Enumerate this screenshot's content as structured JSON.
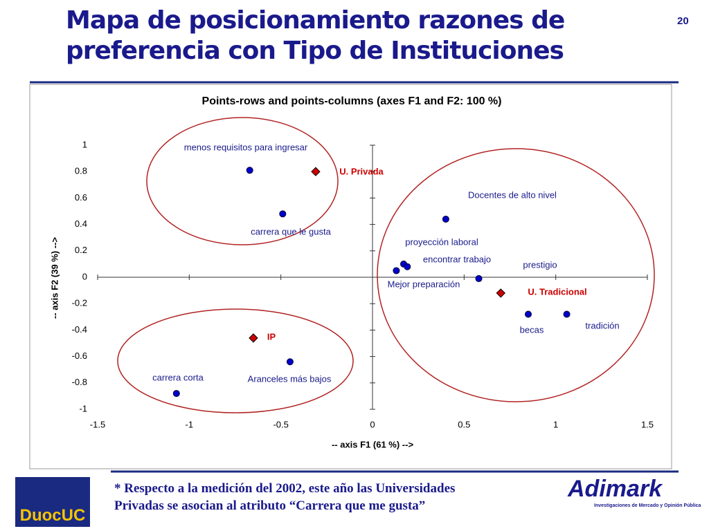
{
  "slide": {
    "title_lines": [
      "Mapa de posicionamiento razones de",
      "preferencia con Tipo de Instituciones"
    ],
    "page_number": "20",
    "footnote_lines": [
      "* Respecto a la medición del 2002, este año las Universidades",
      "Privadas se asocian al atributo “Carrera que me gusta”"
    ],
    "left_logo": "DuocUC",
    "right_logo": "Adimark",
    "right_logo_tagline": "Investigaciones de Mercado y Opinión Pública"
  },
  "chart_data": {
    "type": "scatter",
    "title": "Points-rows and points-columns (axes F1 and F2: 100 %)",
    "xlabel": "-- axis F1 (61 %) -->",
    "ylabel": "-- axis F2 (39 %) -->",
    "xlim": [
      -1.5,
      1.5
    ],
    "ylim": [
      -1,
      1
    ],
    "xticks": [
      -1.5,
      -1,
      -0.5,
      0,
      0.5,
      1,
      1.5
    ],
    "yticks": [
      -1,
      -0.8,
      -0.6,
      -0.4,
      -0.2,
      0,
      0.2,
      0.4,
      0.6,
      0.8,
      1
    ],
    "grid": false,
    "series": [
      {
        "color": "#0000cc",
        "marker": "circle",
        "labels": [
          "menos requisitos para ingresar",
          "carrera que le gusta",
          "Docentes de alto nivel",
          "proyección laboral",
          "encontrar trabajo",
          "Mejor preparación",
          "prestigio",
          "becas",
          "tradición",
          "Aranceles más bajos",
          "carrera corta"
        ],
        "x": [
          -0.67,
          -0.49,
          0.4,
          0.17,
          0.19,
          0.13,
          0.58,
          0.85,
          1.06,
          -0.45,
          -1.07
        ],
        "y": [
          0.81,
          0.48,
          0.44,
          0.1,
          0.08,
          0.05,
          -0.01,
          -0.28,
          -0.28,
          -0.64,
          -0.88
        ]
      },
      {
        "color": "#cc0000",
        "marker": "diamond",
        "labels": [
          "U. Privada",
          "U. Tradicional",
          "IP"
        ],
        "x": [
          -0.31,
          0.7,
          -0.65
        ],
        "y": [
          0.8,
          -0.12,
          -0.46
        ]
      }
    ]
  }
}
